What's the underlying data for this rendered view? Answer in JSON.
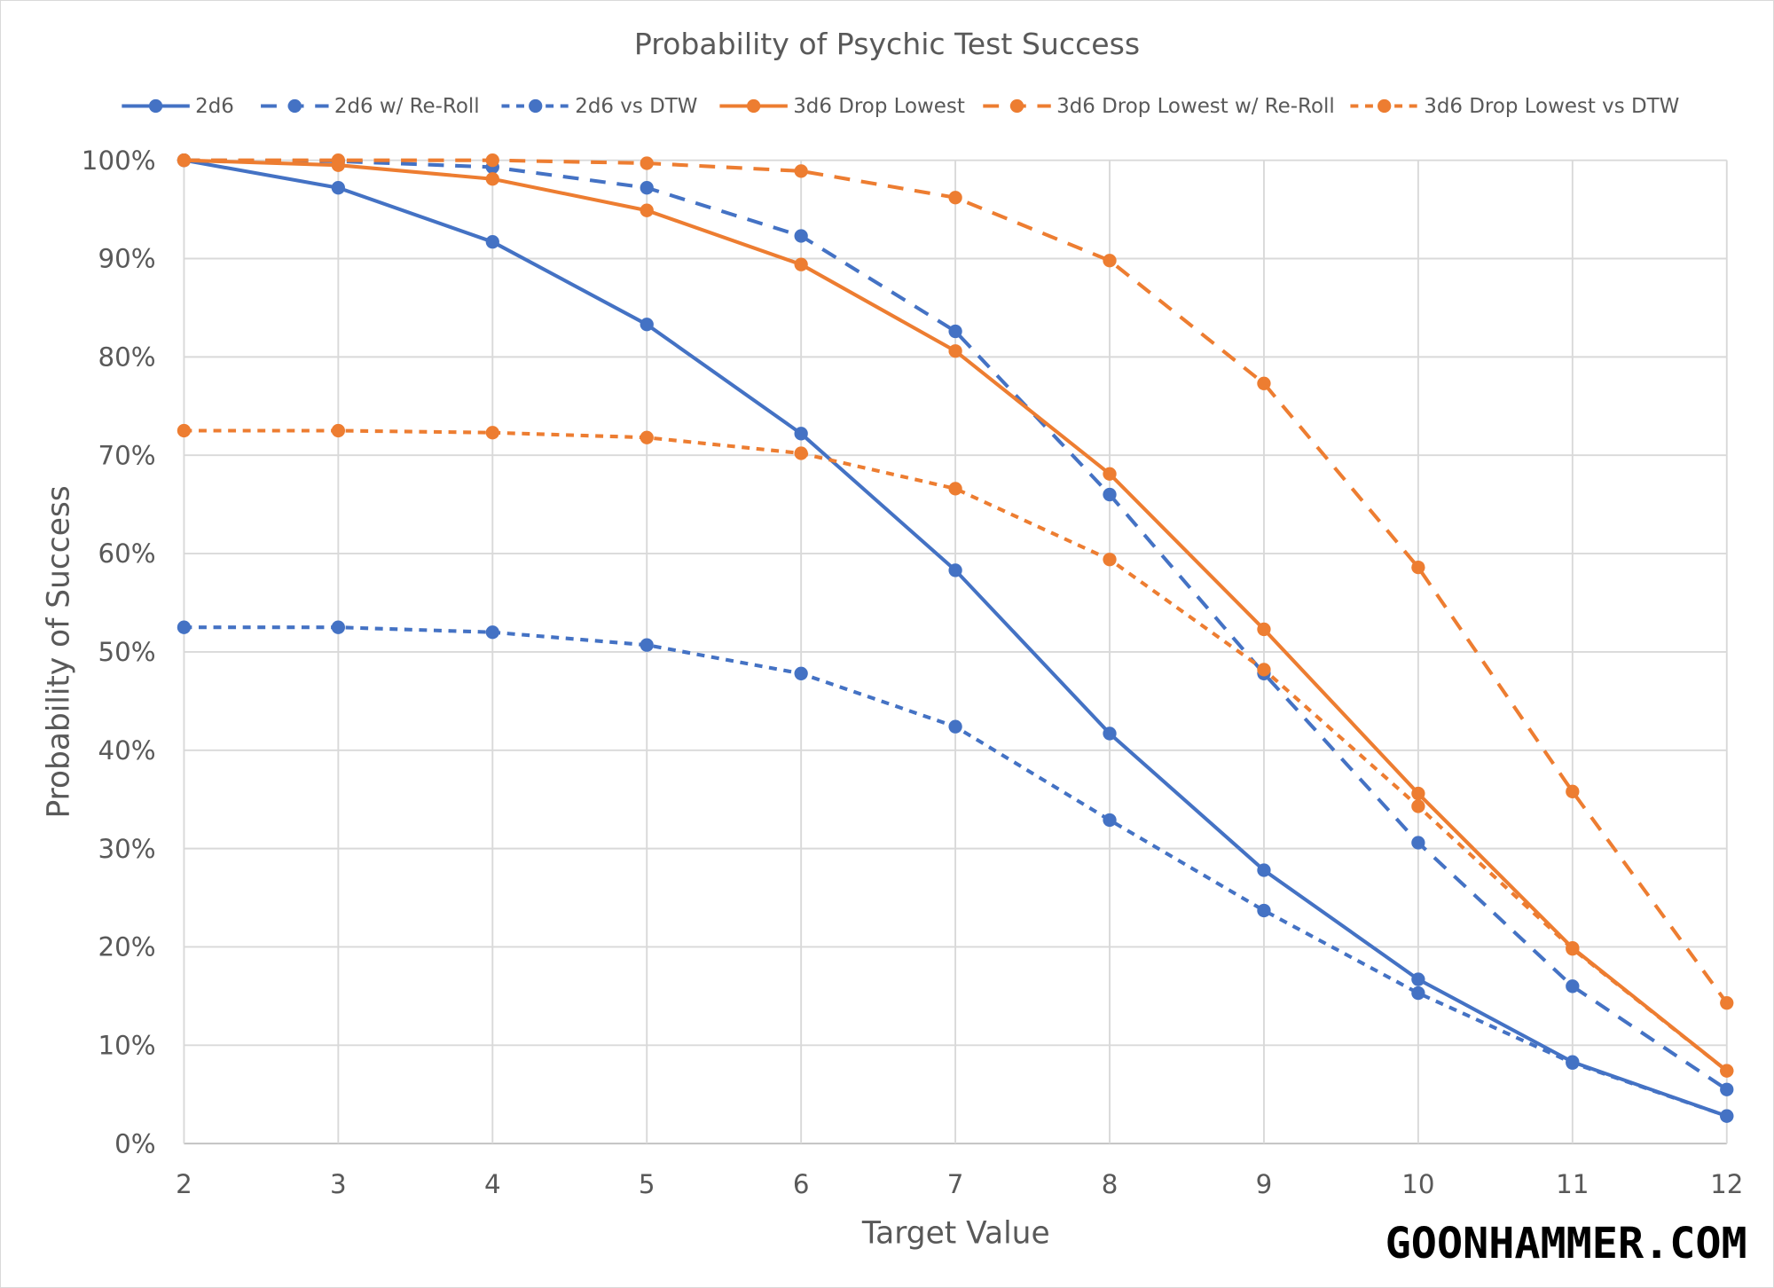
{
  "chart_data": {
    "type": "line",
    "title": "Probability of Psychic Test Success",
    "xlabel": "Target Value",
    "ylabel": "Probability of Success",
    "x": [
      2,
      3,
      4,
      5,
      6,
      7,
      8,
      9,
      10,
      11,
      12
    ],
    "x_tick_labels": [
      "2",
      "3",
      "4",
      "5",
      "6",
      "7",
      "8",
      "9",
      "10",
      "11",
      "12"
    ],
    "ylim": [
      0,
      100
    ],
    "y_tick_labels": [
      "0%",
      "10%",
      "20%",
      "30%",
      "40%",
      "50%",
      "60%",
      "70%",
      "80%",
      "90%",
      "100%"
    ],
    "grid": true,
    "legend_position": "top",
    "series": [
      {
        "name": "2d6",
        "color": "#4472c4",
        "dash": "solid",
        "values": [
          100,
          97.2,
          91.7,
          83.3,
          72.2,
          58.3,
          41.7,
          27.8,
          16.7,
          8.3,
          2.8
        ]
      },
      {
        "name": "2d6 w/ Re-Roll",
        "color": "#4472c4",
        "dash": "dash",
        "values": [
          100,
          99.9,
          99.3,
          97.2,
          92.3,
          82.6,
          66.0,
          47.8,
          30.6,
          16.0,
          5.5
        ]
      },
      {
        "name": "2d6 vs DTW",
        "color": "#4472c4",
        "dash": "short-dash",
        "values": [
          52.5,
          52.5,
          52.0,
          50.7,
          47.8,
          42.4,
          32.9,
          23.7,
          15.3,
          8.2,
          2.8
        ]
      },
      {
        "name": "3d6 Drop Lowest",
        "color": "#ed7d31",
        "dash": "solid",
        "values": [
          100,
          99.5,
          98.1,
          94.9,
          89.4,
          80.6,
          68.1,
          52.3,
          35.6,
          19.9,
          7.4
        ]
      },
      {
        "name": "3d6 Drop Lowest w/ Re-Roll",
        "color": "#ed7d31",
        "dash": "dash",
        "values": [
          100,
          100,
          100,
          99.7,
          98.9,
          96.2,
          89.8,
          77.3,
          58.6,
          35.8,
          14.3
        ]
      },
      {
        "name": "3d6 Drop Lowest vs DTW",
        "color": "#ed7d31",
        "dash": "short-dash",
        "values": [
          72.5,
          72.5,
          72.3,
          71.8,
          70.2,
          66.6,
          59.4,
          48.2,
          34.3,
          19.8,
          7.4
        ]
      }
    ]
  },
  "watermark": "GOONHAMMER.COM"
}
